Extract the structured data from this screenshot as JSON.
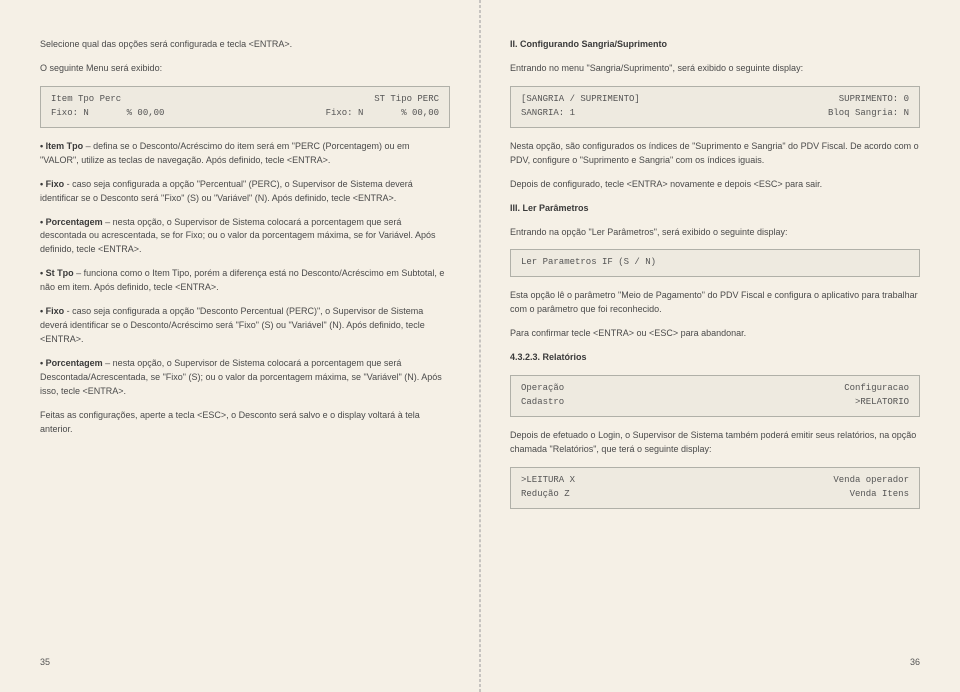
{
  "left": {
    "p1": "Selecione qual das opções será configurada e tecla <ENTRA>.",
    "p2": "O seguinte Menu será exibido:",
    "box1_r1_l": "Item Tpo Perc",
    "box1_r1_r": "ST Tipo PERC",
    "box1_r2_l": "Fixo: N       % 00,00",
    "box1_r2_r": "Fixo: N       % 00,00",
    "b1_lead": "• Item Tpo",
    "b1_text": " – defina se o Desconto/Acréscimo do item será em \"PERC (Porcentagem) ou em \"VALOR\", utilize as teclas de navegação. Após definido, tecle <ENTRA>.",
    "b2_lead": "• Fixo",
    "b2_text": " - caso seja configurada a opção \"Percentual\" (PERC), o Supervisor de Sistema deverá identificar se o Desconto será \"Fixo\" (S) ou \"Variável\" (N). Após definido, tecle <ENTRA>.",
    "b3_lead": "• Porcentagem",
    "b3_text": " – nesta opção, o Supervisor de Sistema colocará a porcentagem que será descontada ou acrescentada, se for Fixo; ou o valor da porcentagem máxima, se for Variável. Após definido, tecle <ENTRA>.",
    "b4_lead": "• St Tpo",
    "b4_text": " – funciona como o Item Tipo, porém a diferença está no Desconto/Acréscimo em Subtotal, e não em item. Após definido, tecle <ENTRA>.",
    "b5_lead": "• Fixo",
    "b5_text": " - caso seja configurada a opção \"Desconto Percentual (PERC)\", o Supervisor de Sistema deverá identificar se o Desconto/Acréscimo será \"Fixo\" (S) ou \"Variável\" (N). Após definido, tecle <ENTRA>.",
    "b6_lead": "• Porcentagem",
    "b6_text": " – nesta opção, o Supervisor de Sistema colocará a porcentagem que será Descontada/Acrescentada, se \"Fixo\" (S); ou o valor da porcentagem máxima, se \"Variável\" (N). Após isso, tecle <ENTRA>.",
    "p3": "Feitas as configurações, aperte a tecla <ESC>, o Desconto será salvo e o display voltará à tela anterior.",
    "pagenum": "35"
  },
  "right": {
    "h1": "II. Configurando Sangria/Suprimento",
    "p1": "Entrando no menu \"Sangria/Suprimento\", será exibido o seguinte display:",
    "box1_r1_l": "[SANGRIA / SUPRIMENTO]",
    "box1_r1_r": "SUPRIMENTO: 0",
    "box1_r2_l": "SANGRIA: 1",
    "box1_r2_r": "Bloq Sangria: N",
    "p2": "Nesta opção, são configurados os índices de \"Suprimento e Sangria\" do PDV Fiscal. De acordo com o PDV, configure o \"Suprimento e Sangria\" com os índices iguais.",
    "p3": "Depois de configurado, tecle <ENTRA> novamente e depois <ESC> para sair.",
    "h2": "III. Ler Parâmetros",
    "p4": "Entrando na opção \"Ler Parâmetros\", será exibido o seguinte display:",
    "box2": "Ler Parametros IF (S / N)",
    "p5": "Esta opção lê o parâmetro \"Meio de Pagamento\" do PDV Fiscal e configura o aplicativo para trabalhar com o parâmetro que foi reconhecido.",
    "p6": "Para confirmar tecle <ENTRA> ou <ESC> para abandonar.",
    "h3": "4.3.2.3. Relatórios",
    "box3_r1_l": "Operação",
    "box3_r1_r": "Configuracao",
    "box3_r2_l": "Cadastro",
    "box3_r2_r": ">RELATORIO",
    "p7": "Depois de efetuado o Login, o Supervisor de Sistema também poderá emitir seus relatórios, na opção chamada \"Relatórios\", que terá o seguinte display:",
    "box4_r1_l": ">LEITURA X",
    "box4_r1_r": "Venda operador",
    "box4_r2_l": "Redução Z",
    "box4_r2_r": "Venda Itens",
    "pagenum": "36"
  }
}
